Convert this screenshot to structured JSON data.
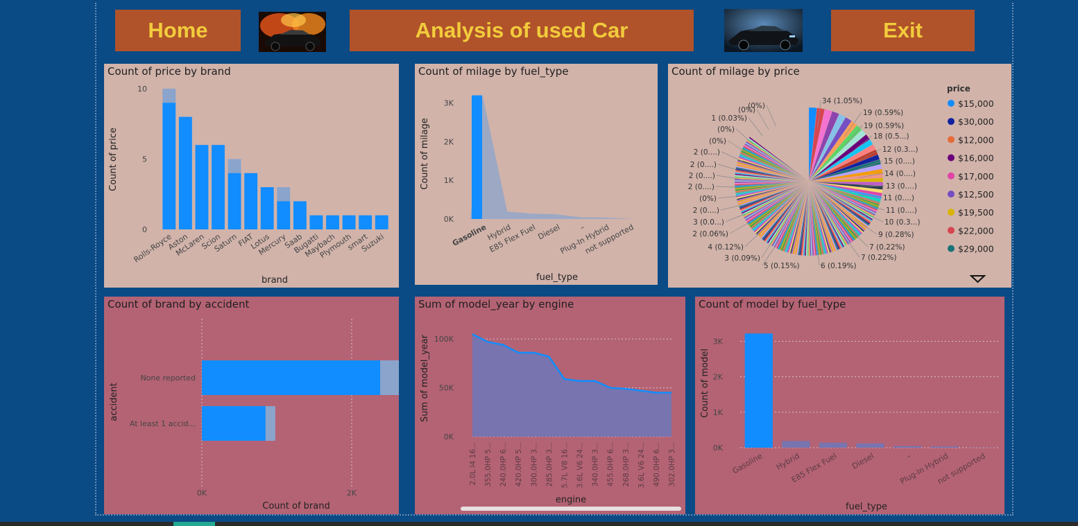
{
  "header": {
    "home_label": "Home",
    "title": "Analysis of used Car",
    "exit_label": "Exit"
  },
  "colors": {
    "background": "#0a4a85",
    "button": "#b0532a",
    "button_text": "#f2cc3c",
    "panel_top": "#d1b3aa",
    "panel_bottom": "#b46374",
    "series_blue": "#118dff",
    "series_faded": "#8aa4cc",
    "area_fill": "#7774b0"
  },
  "icons": {
    "left_image": "car-fire-image",
    "right_image": "car-dark-image",
    "dropdown": "chevron-down-icon"
  },
  "chart_data": [
    {
      "id": "price_by_brand",
      "type": "bar",
      "title": "Count of price by brand",
      "xlabel": "brand",
      "ylabel": "Count of price",
      "yticks": [
        "10",
        "5",
        "0"
      ],
      "ylim": [
        0,
        10
      ],
      "categories": [
        "Rolls-Royce",
        "Aston",
        "McLaren",
        "Scion",
        "Saturn",
        "FIAT",
        "Lotus",
        "Mercury",
        "Saab",
        "Bugatti",
        "Maybach",
        "Plymouth",
        "smart",
        "Suzuki"
      ],
      "values": [
        9,
        8,
        6,
        6,
        4,
        4,
        3,
        2,
        2,
        1,
        1,
        1,
        1,
        1
      ],
      "faded_values": [
        10,
        8,
        6,
        6,
        5,
        4,
        3,
        3,
        2,
        1,
        1,
        1,
        1,
        1
      ]
    },
    {
      "id": "milage_by_fuel",
      "type": "bar",
      "title": "Count of milage by fuel_type",
      "xlabel": "fuel_type",
      "ylabel": "Count of milage",
      "yticks": [
        "3K",
        "2K",
        "1K",
        "0K"
      ],
      "ylim": [
        0,
        3300
      ],
      "categories": [
        "Gasoline",
        "Hybrid",
        "E85 Flex Fuel",
        "Diesel",
        "–",
        "Plug-In Hybrid",
        "not supported"
      ],
      "values": [
        3200,
        190,
        140,
        120,
        45,
        35,
        5
      ]
    },
    {
      "id": "milage_by_price",
      "type": "pie",
      "title": "Count of milage by price",
      "legend_title": "price",
      "legend": [
        {
          "name": "$15,000",
          "color": "#118dff"
        },
        {
          "name": "$30,000",
          "color": "#12239e"
        },
        {
          "name": "$12,000",
          "color": "#e66c37"
        },
        {
          "name": "$16,000",
          "color": "#6b007b"
        },
        {
          "name": "$17,000",
          "color": "#e044a7"
        },
        {
          "name": "$12,500",
          "color": "#744ec2"
        },
        {
          "name": "$19,500",
          "color": "#d9b300"
        },
        {
          "name": "$22,000",
          "color": "#d64550"
        },
        {
          "name": "$29,000",
          "color": "#197278"
        }
      ],
      "labels_right": [
        "34 (1.05%)",
        "19 (0.59%)",
        "19 (0.59%)",
        "18 (0.5...)",
        "12 (0.3...)",
        "15 (0....)",
        "14 (0....)",
        "13 (0....)",
        "11 (0....)",
        "11 (0....)",
        "10 (0.3...)",
        "9 (0.28%)",
        "7 (0.22%)",
        "7 (0.22%)",
        "6 (0.19%)",
        "5 (0.15%)"
      ],
      "labels_left": [
        "(0%)",
        "(0%)",
        "1 (0.03%)",
        "(0%)",
        "(0%)",
        "2 (0....)",
        "2 (0....)",
        "2 (0....)",
        "2 (0....)",
        "(0%)",
        "2 (0....)",
        "3 (0.0...)",
        "2 (0.06%)",
        "4 (0.12%)",
        "3 (0.09%)"
      ]
    },
    {
      "id": "brand_by_accident",
      "type": "bar",
      "orientation": "horizontal",
      "title": "Count of brand by accident",
      "xlabel": "Count of brand",
      "ylabel": "accident",
      "xticks": [
        "0K",
        "2K"
      ],
      "xlim": [
        0,
        2500
      ],
      "categories": [
        "None reported",
        "At least 1 accid..."
      ],
      "values": [
        2380,
        850
      ],
      "faded_values": [
        2750,
        980
      ]
    },
    {
      "id": "model_year_by_engine",
      "type": "area",
      "title": "Sum of model_year by engine",
      "xlabel": "engine",
      "ylabel": "Sum of model_year",
      "yticks": [
        "100K",
        "50K",
        "0K"
      ],
      "ylim": [
        0,
        115000
      ],
      "categories": [
        "2.0L I4 16...",
        "355.0HP 5...",
        "240.0HP 6...",
        "420.0HP 5...",
        "300.0HP 3...",
        "285.0HP 3...",
        "5.7L V8 16...",
        "3.6L V6 24...",
        "340.0HP 3...",
        "455.0HP 6...",
        "268.0HP 3...",
        "3.6L V6 24...",
        "490.0HP 6...",
        "302.0HP 3..."
      ],
      "values": [
        105000,
        97000,
        94000,
        86000,
        86000,
        82000,
        59000,
        57000,
        57000,
        50000,
        49000,
        47000,
        45000,
        45000
      ]
    },
    {
      "id": "model_by_fuel",
      "type": "bar",
      "title": "Count of model by fuel_type",
      "xlabel": "fuel_type",
      "ylabel": "Count of model",
      "yticks": [
        "3K",
        "2K",
        "1K",
        "0K"
      ],
      "ylim": [
        0,
        3400
      ],
      "categories": [
        "Gasoline",
        "Hybrid",
        "E85 Flex Fuel",
        "Diesel",
        "–",
        "Plug-In Hybrid",
        "not supported"
      ],
      "values": [
        3220,
        190,
        140,
        120,
        45,
        35,
        5
      ]
    }
  ]
}
